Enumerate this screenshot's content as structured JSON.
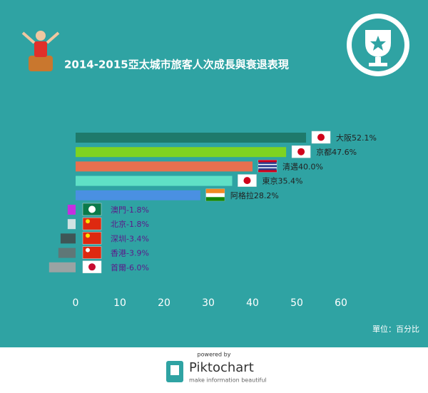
{
  "chart_data": {
    "type": "bar",
    "orientation": "horizontal",
    "title": "2014-2015亞太城市旅客人次成長與衰退表現",
    "categories": [
      "大阪",
      "京都",
      "清邁",
      "東京",
      "阿格拉",
      "澳門",
      "北京",
      "深圳",
      "香港",
      "首爾"
    ],
    "values": [
      52.1,
      47.6,
      40.0,
      35.4,
      28.2,
      -1.8,
      -1.8,
      -3.4,
      -3.9,
      -6.0
    ],
    "value_labels": [
      "52.1%",
      "47.6%",
      "40.0%",
      "35.4%",
      "28.2%",
      "-1.8%",
      "-1.8%",
      "-3.4%",
      "-3.9%",
      "-6.0%"
    ],
    "colors": [
      "#1e7a6b",
      "#7ed321",
      "#e8704f",
      "#5fe0c6",
      "#4a90e2",
      "#c42fe0",
      "#cfe3e3",
      "#3e5656",
      "#5f7777",
      "#9aa3a3"
    ],
    "xlim": [
      0,
      60
    ],
    "xticks": [
      0,
      10,
      20,
      30,
      40,
      50,
      60
    ],
    "unit_note": "單位：百分比",
    "footer": {
      "powered": "powered by",
      "brand": "Piktochart",
      "tagline": "make information beautiful"
    }
  }
}
